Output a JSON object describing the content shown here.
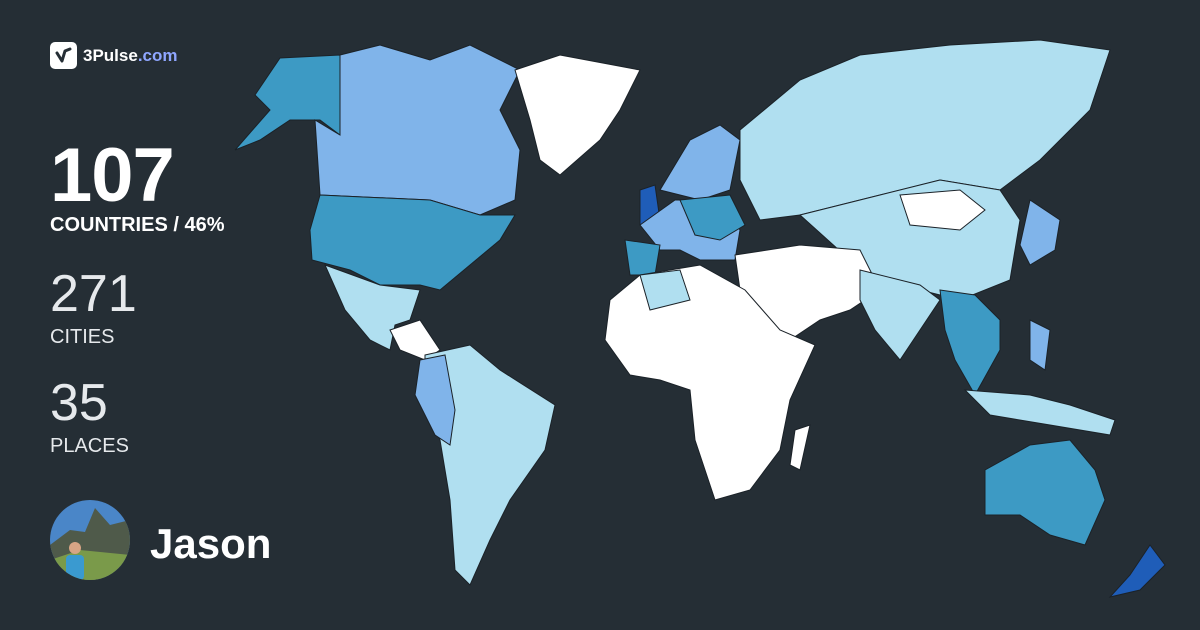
{
  "brand": {
    "name": "3Pulse",
    "domain": ".com",
    "icon": "check-pulse-icon"
  },
  "stats": {
    "countries": {
      "value": "107",
      "label": "COUNTRIES / 46%"
    },
    "cities": {
      "value": "271",
      "label": "CITIES"
    },
    "places": {
      "value": "35",
      "label": "PLACES"
    }
  },
  "user": {
    "name": "Jason",
    "avatar": "profile-photo"
  },
  "map": {
    "colors": {
      "background": "#252e35",
      "unvisited": "#ffffff",
      "level1": "#b0dff0",
      "level2": "#80b4ea",
      "level3": "#3d9ac4",
      "level4": "#1f5db8"
    }
  }
}
